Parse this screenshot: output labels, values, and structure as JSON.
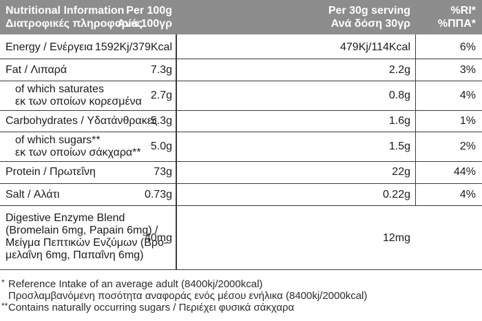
{
  "header": {
    "name": [
      "Nutritional Information",
      "Διατροφικές πληροφορίες"
    ],
    "per100": [
      "Per 100g",
      "Ανά 100γρ"
    ],
    "per30": [
      "Per 30g serving",
      "Ανά δόση 30γρ"
    ],
    "ri": [
      "%RI*",
      "%ΠΠΑ*"
    ]
  },
  "rows": [
    {
      "name": [
        "Energy / Ενέργεια"
      ],
      "per100": "1592Kj/379Kcal",
      "per30": "479Kj/114Kcal",
      "ri": "6%"
    },
    {
      "name": [
        "Fat / Λιπαρά"
      ],
      "per100": "7.3g",
      "per30": "2.2g",
      "ri": "3%"
    },
    {
      "name": [
        "of which saturates",
        "εκ των οποίων κορεσμένα"
      ],
      "per100": "2.7g",
      "per30": "0.8g",
      "ri": "4%"
    },
    {
      "name": [
        "Carbohydrates / Υδατάνθρακες"
      ],
      "per100": "5.3g",
      "per30": "1.6g",
      "ri": "1%"
    },
    {
      "name": [
        "of which sugars**",
        "εκ των οποίων σάκχαρα**"
      ],
      "per100": "5.0g",
      "per30": "1.5g",
      "ri": "2%"
    },
    {
      "name": [
        "Protein / Πρωτεΐνη"
      ],
      "per100": "73g",
      "per30": "22g",
      "ri": "44%"
    },
    {
      "name": [
        "Salt / Αλάτι"
      ],
      "per100": "0.73g",
      "per30": "0.22g",
      "ri": "4%"
    },
    {
      "name": [
        "Digestive Enzyme Blend",
        "(Bromelain 6mg, Papain 6mg) /",
        "Μείγμα Πεπτικών Ενζύμων (Βρο-",
        "μελαΐνη 6mg, Παπαΐνη 6mg)"
      ],
      "per100": "40mg",
      "per30": "12mg",
      "ri": ""
    }
  ],
  "footnotes": [
    {
      "mark": "*",
      "text": "Reference Intake of an average adult (8400kj/2000kcal)"
    },
    {
      "mark": "",
      "text": "Προσλαμβανόμενη ποσότητα αναφοράς ενός μέσου ενήλικα (8400kj/2000kcal)"
    },
    {
      "mark": "**",
      "text": "Contains naturally occurring sugars / Περιέχει φυσικά σάκχαρα"
    }
  ]
}
